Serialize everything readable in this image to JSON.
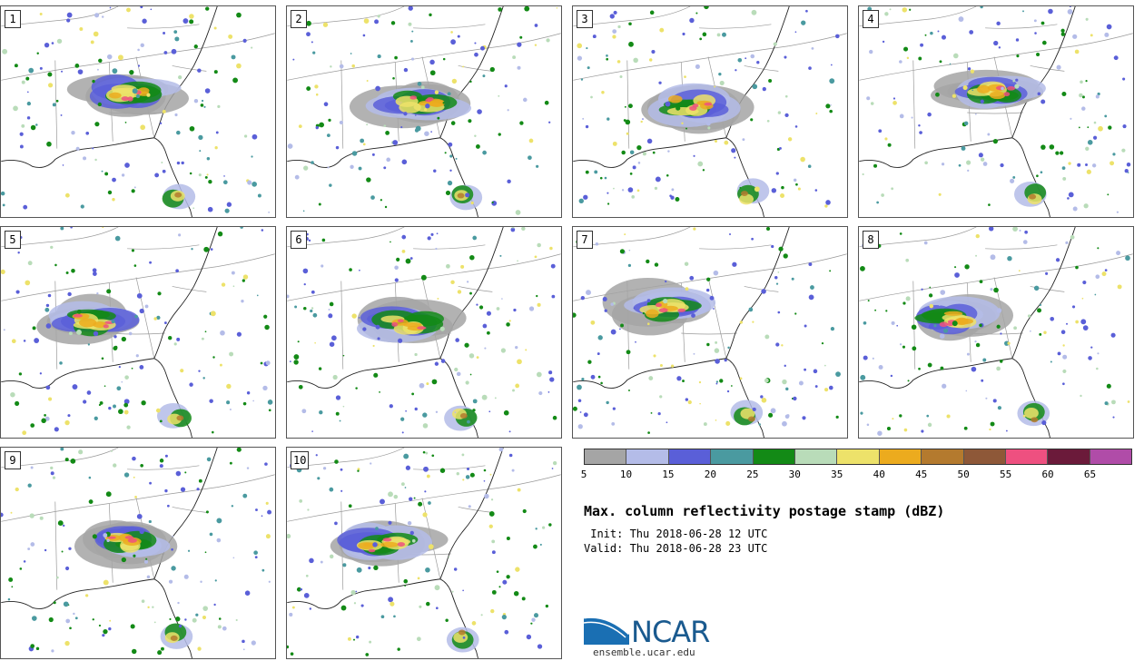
{
  "panels": [
    {
      "label": "1",
      "seed": 11
    },
    {
      "label": "2",
      "seed": 23
    },
    {
      "label": "3",
      "seed": 37
    },
    {
      "label": "4",
      "seed": 41
    },
    {
      "label": "5",
      "seed": 53
    },
    {
      "label": "6",
      "seed": 67
    },
    {
      "label": "7",
      "seed": 71
    },
    {
      "label": "8",
      "seed": 83
    },
    {
      "label": "9",
      "seed": 97
    },
    {
      "label": "10",
      "seed": 101
    }
  ],
  "colorbar": {
    "ticks": [
      "5",
      "10",
      "15",
      "20",
      "25",
      "30",
      "35",
      "40",
      "45",
      "50",
      "55",
      "60",
      "65"
    ],
    "colors": [
      "#a5a5a5",
      "#b4bce8",
      "#5a5fd8",
      "#4a9aa0",
      "#138a16",
      "#b9dcb9",
      "#ede26a",
      "#ecab1e",
      "#b47a2e",
      "#8e5838",
      "#ee5080",
      "#6b1a3a",
      "#b04ca8"
    ]
  },
  "title": "Max. column reflectivity postage stamp (dBZ)",
  "init": " Init: Thu 2018-06-28 12 UTC",
  "valid": "Valid: Thu 2018-06-28 23 UTC",
  "logo": {
    "text": "NCAR",
    "url": "ensemble.ucar.edu",
    "color": "#1a5a8f"
  }
}
